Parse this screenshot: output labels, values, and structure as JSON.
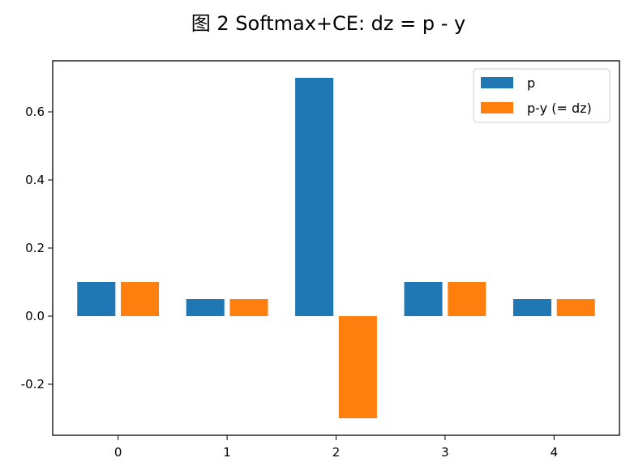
{
  "chart_data": {
    "type": "bar",
    "title": "图 2   Softmax+CE: dz = p - y",
    "xlabel": "",
    "ylabel": "",
    "categories": [
      "0",
      "1",
      "2",
      "3",
      "4"
    ],
    "series": [
      {
        "name": "p",
        "values": [
          0.1,
          0.05,
          0.7,
          0.1,
          0.05
        ],
        "color": "#1f77b4"
      },
      {
        "name": "p-y (= dz)",
        "values": [
          0.1,
          0.05,
          -0.3,
          0.1,
          0.05
        ],
        "color": "#ff7f0e"
      }
    ],
    "ylim": [
      -0.35,
      0.75
    ],
    "yticks": [
      -0.2,
      0.0,
      0.2,
      0.4,
      0.6
    ],
    "ytick_labels": [
      "-0.2",
      "0.0",
      "0.2",
      "0.4",
      "0.6"
    ],
    "grid": false,
    "legend_position": "top-right"
  }
}
